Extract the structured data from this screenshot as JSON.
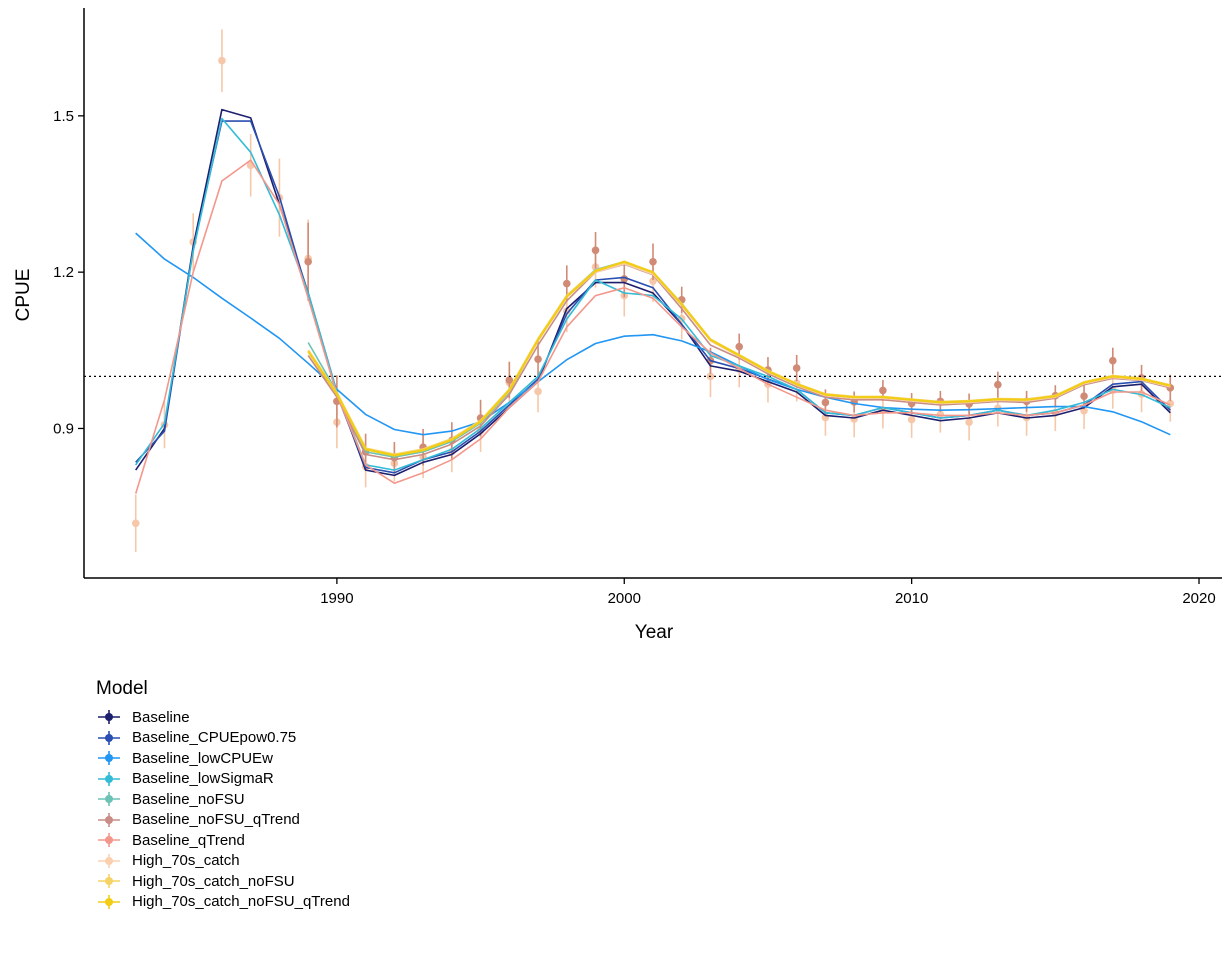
{
  "chart_data": {
    "type": "line",
    "xlabel": "Year",
    "ylabel": "CPUE",
    "xlim": [
      1981.2,
      2020.8
    ],
    "ylim": [
      0.613,
      1.707
    ],
    "xticks": [
      1990,
      2000,
      2010,
      2020
    ],
    "yticks": [
      0.9,
      1.2,
      1.5
    ],
    "reference_line": {
      "y": 1.0,
      "style": "dotted"
    },
    "legend_title": "Model",
    "legend_position": "bottom-left",
    "grid": false,
    "observed": {
      "years": [
        1983,
        1984,
        1985,
        1986,
        1987,
        1988,
        1989,
        1990,
        1991,
        1992,
        1993,
        1994,
        1995,
        1996,
        1997,
        1998,
        1999,
        2000,
        2001,
        2002,
        2003,
        2004,
        2005,
        2006,
        2007,
        2008,
        2009,
        2010,
        2011,
        2012,
        2013,
        2014,
        2015,
        2016,
        2017,
        2018,
        2019
      ],
      "baseline": {
        "color": "#f6c7a9",
        "values": [
          0.718,
          0.907,
          1.258,
          1.606,
          1.405,
          1.343,
          1.226,
          0.912,
          0.827,
          0.833,
          0.845,
          0.856,
          0.895,
          0.988,
          0.971,
          1.125,
          1.21,
          1.155,
          1.183,
          1.111,
          1.0,
          1.014,
          0.985,
          0.987,
          0.921,
          0.918,
          0.935,
          0.917,
          0.927,
          0.912,
          0.939,
          0.921,
          0.93,
          0.934,
          0.973,
          0.966,
          0.948
        ],
        "err": [
          0.055,
          0.045,
          0.055,
          0.06,
          0.06,
          0.075,
          0.075,
          0.05,
          0.04,
          0.035,
          0.04,
          0.04,
          0.04,
          0.04,
          0.04,
          0.04,
          0.04,
          0.04,
          0.04,
          0.04,
          0.04,
          0.035,
          0.035,
          0.035,
          0.035,
          0.035,
          0.035,
          0.035,
          0.035,
          0.035,
          0.035,
          0.035,
          0.035,
          0.035,
          0.035,
          0.035,
          0.035
        ]
      },
      "qtrend": {
        "color": "#d08a75",
        "values": [
          null,
          null,
          null,
          null,
          null,
          null,
          1.22,
          0.952,
          0.855,
          0.844,
          0.864,
          0.877,
          0.92,
          0.993,
          1.033,
          1.178,
          1.242,
          1.187,
          1.22,
          1.147,
          1.03,
          1.057,
          1.012,
          1.016,
          0.95,
          0.951,
          0.973,
          0.948,
          0.952,
          0.947,
          0.984,
          0.952,
          0.963,
          0.962,
          1.03,
          0.997,
          0.978
        ],
        "err": [
          0,
          0,
          0,
          0,
          0,
          0,
          0.075,
          0.05,
          0.035,
          0.03,
          0.035,
          0.035,
          0.035,
          0.035,
          0.035,
          0.035,
          0.035,
          0.035,
          0.035,
          0.025,
          0.025,
          0.025,
          0.025,
          0.025,
          0.025,
          0.02,
          0.02,
          0.02,
          0.02,
          0.02,
          0.025,
          0.02,
          0.02,
          0.025,
          0.025,
          0.025,
          0.025
        ]
      }
    },
    "series": [
      {
        "name": "Baseline",
        "color": "#1d1f6f",
        "years": [
          1983,
          1984,
          1985,
          1986,
          1987,
          1988,
          1989,
          1990,
          1991,
          1992,
          1993,
          1994,
          1995,
          1996,
          1997,
          1998,
          1999,
          2000,
          2001,
          2002,
          2003,
          2004,
          2005,
          2006,
          2007,
          2008,
          2009,
          2010,
          2011,
          2012,
          2013,
          2014,
          2015,
          2016,
          2017,
          2018,
          2019
        ],
        "values": [
          0.82,
          0.9,
          1.25,
          1.512,
          1.496,
          1.33,
          1.16,
          0.97,
          0.82,
          0.81,
          0.835,
          0.85,
          0.89,
          0.94,
          0.99,
          1.13,
          1.18,
          1.18,
          1.16,
          1.1,
          1.02,
          1.01,
          0.99,
          0.97,
          0.925,
          0.92,
          0.935,
          0.925,
          0.915,
          0.92,
          0.93,
          0.92,
          0.925,
          0.94,
          0.98,
          0.985,
          0.93
        ]
      },
      {
        "name": "Baseline_CPUEpow0.75",
        "color": "#2a4fb0",
        "years": [
          1983,
          1984,
          1985,
          1986,
          1987,
          1988,
          1989,
          1990,
          1991,
          1992,
          1993,
          1994,
          1995,
          1996,
          1997,
          1998,
          1999,
          2000,
          2001,
          2002,
          2003,
          2004,
          2005,
          2006,
          2007,
          2008,
          2009,
          2010,
          2011,
          2012,
          2013,
          2014,
          2015,
          2016,
          2017,
          2018,
          2019
        ],
        "values": [
          0.835,
          0.895,
          1.245,
          1.49,
          1.49,
          1.345,
          1.155,
          0.965,
          0.825,
          0.815,
          0.84,
          0.855,
          0.895,
          0.945,
          0.995,
          1.12,
          1.185,
          1.19,
          1.17,
          1.1,
          1.03,
          1.015,
          0.995,
          0.975,
          0.93,
          0.925,
          0.94,
          0.93,
          0.92,
          0.925,
          0.935,
          0.925,
          0.93,
          0.945,
          0.985,
          0.99,
          0.935
        ]
      },
      {
        "name": "Baseline_lowCPUEw",
        "color": "#2196f3",
        "years": [
          1983,
          1984,
          1985,
          1986,
          1987,
          1988,
          1989,
          1990,
          1991,
          1992,
          1993,
          1994,
          1995,
          1996,
          1997,
          1998,
          1999,
          2000,
          2001,
          2002,
          2003,
          2004,
          2005,
          2006,
          2007,
          2008,
          2009,
          2010,
          2011,
          2012,
          2013,
          2014,
          2015,
          2016,
          2017,
          2018,
          2019
        ],
        "values": [
          1.275,
          1.225,
          1.19,
          1.15,
          1.112,
          1.073,
          1.025,
          0.975,
          0.927,
          0.898,
          0.888,
          0.895,
          0.913,
          0.95,
          0.99,
          1.032,
          1.063,
          1.077,
          1.08,
          1.068,
          1.047,
          1.02,
          0.994,
          0.975,
          0.96,
          0.948,
          0.94,
          0.937,
          0.935,
          0.936,
          0.938,
          0.94,
          0.942,
          0.942,
          0.932,
          0.913,
          0.888
        ]
      },
      {
        "name": "Baseline_lowSigmaR",
        "color": "#33bcd6",
        "years": [
          1983,
          1984,
          1985,
          1986,
          1987,
          1988,
          1989,
          1990,
          1991,
          1992,
          1993,
          1994,
          1995,
          1996,
          1997,
          1998,
          1999,
          2000,
          2001,
          2002,
          2003,
          2004,
          2005,
          2006,
          2007,
          2008,
          2009,
          2010,
          2011,
          2012,
          2013,
          2014,
          2015,
          2016,
          2017,
          2018,
          2019
        ],
        "values": [
          0.83,
          0.91,
          1.24,
          1.495,
          1.43,
          1.31,
          1.16,
          0.97,
          0.83,
          0.82,
          0.84,
          0.86,
          0.9,
          0.95,
          1.0,
          1.11,
          1.185,
          1.16,
          1.155,
          1.11,
          1.04,
          1.02,
          1.0,
          0.975,
          0.93,
          0.925,
          0.94,
          0.93,
          0.92,
          0.925,
          0.935,
          0.925,
          0.935,
          0.95,
          0.975,
          0.965,
          0.94
        ]
      },
      {
        "name": "Baseline_noFSU",
        "color": "#6cc2b5",
        "years": [
          1989,
          1990,
          1991,
          1992,
          1993,
          1994,
          1995,
          1996,
          1997,
          1998,
          1999,
          2000,
          2001,
          2002,
          2003,
          2004,
          2005,
          2006,
          2007,
          2008,
          2009,
          2010,
          2011,
          2012,
          2013,
          2014,
          2015,
          2016,
          2017,
          2018,
          2019
        ],
        "values": [
          1.065,
          0.97,
          0.855,
          0.845,
          0.855,
          0.875,
          0.91,
          0.97,
          1.07,
          1.155,
          1.205,
          1.22,
          1.2,
          1.14,
          1.07,
          1.04,
          1.01,
          0.985,
          0.965,
          0.96,
          0.96,
          0.955,
          0.95,
          0.952,
          0.956,
          0.955,
          0.962,
          0.988,
          1.0,
          0.995,
          0.982
        ]
      },
      {
        "name": "Baseline_noFSU_qTrend",
        "color": "#c98d86",
        "years": [
          1989,
          1990,
          1991,
          1992,
          1993,
          1994,
          1995,
          1996,
          1997,
          1998,
          1999,
          2000,
          2001,
          2002,
          2003,
          2004,
          2005,
          2006,
          2007,
          2008,
          2009,
          2010,
          2011,
          2012,
          2013,
          2014,
          2015,
          2016,
          2017,
          2018,
          2019
        ],
        "values": [
          1.04,
          0.96,
          0.85,
          0.84,
          0.85,
          0.87,
          0.905,
          0.965,
          1.06,
          1.145,
          1.2,
          1.215,
          1.195,
          1.13,
          1.06,
          1.035,
          1.005,
          0.98,
          0.96,
          0.955,
          0.955,
          0.95,
          0.945,
          0.948,
          0.952,
          0.95,
          0.958,
          0.984,
          0.996,
          0.992,
          0.978
        ]
      },
      {
        "name": "Baseline_qTrend",
        "color": "#f3978b",
        "years": [
          1983,
          1984,
          1985,
          1986,
          1987,
          1988,
          1989,
          1990,
          1991,
          1992,
          1993,
          1994,
          1995,
          1996,
          1997,
          1998,
          1999,
          2000,
          2001,
          2002,
          2003,
          2004,
          2005,
          2006,
          2007,
          2008,
          2009,
          2010,
          2011,
          2012,
          2013,
          2014,
          2015,
          2016,
          2017,
          2018,
          2019
        ],
        "values": [
          0.775,
          0.955,
          1.2,
          1.375,
          1.415,
          1.33,
          1.15,
          0.965,
          0.83,
          0.795,
          0.815,
          0.84,
          0.88,
          0.94,
          0.99,
          1.095,
          1.155,
          1.17,
          1.15,
          1.095,
          1.045,
          1.015,
          0.985,
          0.96,
          0.935,
          0.925,
          0.93,
          0.93,
          0.925,
          0.925,
          0.93,
          0.925,
          0.93,
          0.945,
          0.97,
          0.97,
          0.945
        ]
      },
      {
        "name": "High_70s_catch",
        "color": "#fbd0b0",
        "years": [
          1989,
          1990,
          1991,
          1992,
          1993,
          1994,
          1995,
          1996,
          1997,
          1998,
          1999,
          2000,
          2001,
          2002,
          2003,
          2004,
          2005,
          2006,
          2007,
          2008,
          2009,
          2010,
          2011,
          2012,
          2013,
          2014,
          2015,
          2016,
          2017,
          2018,
          2019
        ],
        "values": [
          1.05,
          0.965,
          0.86,
          0.848,
          0.858,
          0.878,
          0.912,
          0.972,
          1.068,
          1.152,
          1.2,
          1.216,
          1.196,
          1.136,
          1.068,
          1.038,
          1.008,
          0.983,
          0.963,
          0.958,
          0.958,
          0.953,
          0.948,
          0.95,
          0.954,
          0.953,
          0.96,
          0.986,
          0.998,
          0.993,
          0.98
        ]
      },
      {
        "name": "High_70s_catch_noFSU",
        "color": "#f6d365",
        "years": [
          1989,
          1990,
          1991,
          1992,
          1993,
          1994,
          1995,
          1996,
          1997,
          1998,
          1999,
          2000,
          2001,
          2002,
          2003,
          2004,
          2005,
          2006,
          2007,
          2008,
          2009,
          2010,
          2011,
          2012,
          2013,
          2014,
          2015,
          2016,
          2017,
          2018,
          2019
        ],
        "values": [
          1.05,
          0.968,
          0.862,
          0.85,
          0.86,
          0.88,
          0.915,
          0.975,
          1.072,
          1.155,
          1.203,
          1.219,
          1.199,
          1.139,
          1.071,
          1.041,
          1.011,
          0.986,
          0.966,
          0.961,
          0.961,
          0.956,
          0.951,
          0.953,
          0.957,
          0.956,
          0.963,
          0.989,
          1.001,
          0.996,
          0.983
        ]
      },
      {
        "name": "High_70s_catch_noFSU_qTrend",
        "color": "#f2cd16",
        "years": [
          1989,
          1990,
          1991,
          1992,
          1993,
          1994,
          1995,
          1996,
          1997,
          1998,
          1999,
          2000,
          2001,
          2002,
          2003,
          2004,
          2005,
          2006,
          2007,
          2008,
          2009,
          2010,
          2011,
          2012,
          2013,
          2014,
          2015,
          2016,
          2017,
          2018,
          2019
        ],
        "values": [
          1.048,
          0.966,
          0.86,
          0.848,
          0.858,
          0.878,
          0.913,
          0.973,
          1.07,
          1.153,
          1.202,
          1.22,
          1.2,
          1.138,
          1.07,
          1.04,
          1.01,
          0.985,
          0.965,
          0.96,
          0.96,
          0.955,
          0.95,
          0.952,
          0.956,
          0.955,
          0.962,
          0.988,
          1.0,
          0.995,
          0.982
        ]
      }
    ]
  }
}
